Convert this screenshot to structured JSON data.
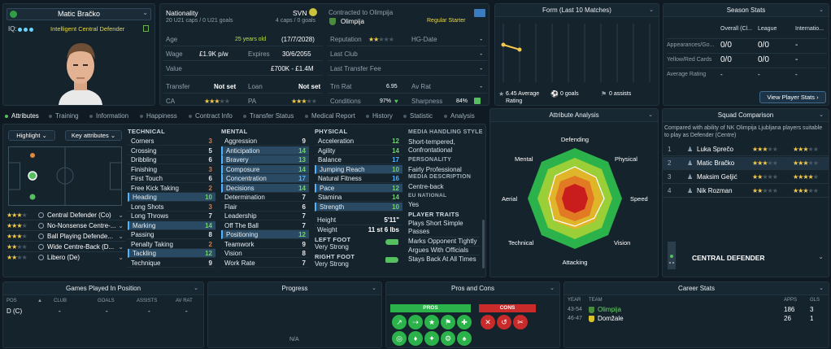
{
  "player": {
    "name": "Matic Bračko",
    "role_label": "Intelligent Central Defender",
    "iq_label": "IQ:"
  },
  "info": {
    "nationality_label": "Nationality",
    "nationality_value": "SVN",
    "caps": "20 U21 caps / 0 U21 goals",
    "caps_right": "4 caps / 0 goals",
    "contracted_label": "Contracted to Olimpija",
    "club": "Olimpija",
    "squad_status": "Regular Starter",
    "age_label": "Age",
    "age_value": "25 years old",
    "dob": "(17/7/2028)",
    "wage_label": "Wage",
    "wage_value": "£1.9K p/w",
    "expires_label": "Expires",
    "expires_value": "30/6/2055",
    "value_label": "Value",
    "value_value": "£700K - £1.4M",
    "transfer_label": "Transfer",
    "transfer_value": "Not set",
    "loan_label": "Loan",
    "loan_value": "Not set",
    "ca_label": "CA",
    "pa_label": "PA",
    "reputation_label": "Reputation",
    "hg_label": "HG-Date",
    "hg_value": "-",
    "lastclub_label": "Last Club",
    "lastclub_value": "-",
    "lasttransfer_label": "Last Transfer Fee",
    "lasttransfer_value": "-",
    "trnrat_label": "Trn Rat",
    "trnrat_value": "6.95",
    "avrat_label": "Av Rat",
    "avrat_value": "-",
    "conditions_label": "Conditions",
    "conditions_value": "97%",
    "sharpness_label": "Sharpness",
    "sharpness_value": "84%"
  },
  "form": {
    "title": "Form (Last 10 Matches)",
    "avg": "6.45 Average Rating",
    "goals": "0 goals",
    "assists": "0 assists"
  },
  "season": {
    "title": "Season Stats",
    "cols": [
      "Overall (Cl...",
      "League",
      "Internatio..."
    ],
    "rows": [
      {
        "label": "Appearances/Go...",
        "v": [
          "0/0",
          "0/0",
          "-"
        ]
      },
      {
        "label": "Yellow/Red Cards",
        "v": [
          "0/0",
          "0/0",
          "-"
        ]
      },
      {
        "label": "Average Rating",
        "v": [
          "-",
          "-",
          "-"
        ]
      }
    ],
    "button": "View Player Stats"
  },
  "tabs": [
    "Attributes",
    "Training",
    "Information",
    "Happiness",
    "Contract Info",
    "Transfer Status",
    "Medical Report",
    "History",
    "Statistic",
    "Analysis"
  ],
  "left": {
    "highlight": "Highlight",
    "keyattr": "Key attributes",
    "roles": [
      {
        "name": "Central Defender (Co)",
        "stars": 3
      },
      {
        "name": "No-Nonsense Centre-...",
        "stars": 3
      },
      {
        "name": "Ball Playing Defende...",
        "stars": 3
      },
      {
        "name": "Wide Centre-Back (D...",
        "stars": 2
      },
      {
        "name": "Libero (De)",
        "stars": 2
      }
    ]
  },
  "technical": {
    "title": "TECHNICAL",
    "items": [
      {
        "n": "Corners",
        "v": "3"
      },
      {
        "n": "Crossing",
        "v": "5"
      },
      {
        "n": "Dribbling",
        "v": "6"
      },
      {
        "n": "Finishing",
        "v": "3"
      },
      {
        "n": "First Touch",
        "v": "6"
      },
      {
        "n": "Free Kick Taking",
        "v": "2"
      },
      {
        "n": "Heading",
        "v": "10"
      },
      {
        "n": "Long Shots",
        "v": "3"
      },
      {
        "n": "Long Throws",
        "v": "7"
      },
      {
        "n": "Marking",
        "v": "14"
      },
      {
        "n": "Passing",
        "v": "8"
      },
      {
        "n": "Penalty Taking",
        "v": "2"
      },
      {
        "n": "Tackling",
        "v": "12"
      },
      {
        "n": "Technique",
        "v": "9"
      }
    ]
  },
  "mental": {
    "title": "MENTAL",
    "items": [
      {
        "n": "Aggression",
        "v": "9"
      },
      {
        "n": "Anticipation",
        "v": "14"
      },
      {
        "n": "Bravery",
        "v": "13"
      },
      {
        "n": "Composure",
        "v": "14"
      },
      {
        "n": "Concentration",
        "v": "17"
      },
      {
        "n": "Decisions",
        "v": "14"
      },
      {
        "n": "Determination",
        "v": "7"
      },
      {
        "n": "Flair",
        "v": "6"
      },
      {
        "n": "Leadership",
        "v": "7"
      },
      {
        "n": "Off The Ball",
        "v": "7"
      },
      {
        "n": "Positioning",
        "v": "12"
      },
      {
        "n": "Teamwork",
        "v": "9"
      },
      {
        "n": "Vision",
        "v": "8"
      },
      {
        "n": "Work Rate",
        "v": "7"
      }
    ]
  },
  "physical": {
    "title": "PHYSICAL",
    "items": [
      {
        "n": "Acceleration",
        "v": "12"
      },
      {
        "n": "Agility",
        "v": "14"
      },
      {
        "n": "Balance",
        "v": "17"
      },
      {
        "n": "Jumping Reach",
        "v": "10"
      },
      {
        "n": "Natural Fitness",
        "v": "16"
      },
      {
        "n": "Pace",
        "v": "12"
      },
      {
        "n": "Stamina",
        "v": "14"
      },
      {
        "n": "Strength",
        "v": "10"
      }
    ],
    "height_label": "Height",
    "height_value": "5'11\"",
    "weight_label": "Weight",
    "weight_value": "11 st 6 lbs",
    "leftfoot_label": "LEFT FOOT",
    "leftfoot_value": "Very Strong",
    "rightfoot_label": "RIGHT FOOT",
    "rightfoot_value": "Very Strong"
  },
  "media": {
    "style_label": "MEDIA HANDLING STYLE",
    "style_value": "Short-tempered, Confrontational",
    "personality_label": "PERSONALITY",
    "personality_value": "Fairly Professional",
    "desc_label": "MEDIA DESCRIPTION",
    "desc_value": "Centre-back",
    "eu_label": "EU NATIONAL",
    "eu_value": "Yes",
    "traits_label": "PLAYER TRAITS",
    "traits": [
      "Plays Short Simple Passes",
      "Marks Opponent Tightly",
      "Argues With Officials",
      "Stays Back At All Times"
    ]
  },
  "analysis": {
    "title": "Attribute Analysis",
    "labels": [
      "Defending",
      "Physical",
      "Speed",
      "Vision",
      "Attacking",
      "Technical",
      "Aerial",
      "Mental"
    ]
  },
  "squad": {
    "title": "Squad Comparison",
    "desc": "Compared with ability of NK Olimpija Ljubljana players suitable to play as Defender (Centre)",
    "players": [
      {
        "rank": "1",
        "name": "Luka Sprečo",
        "ca": 3,
        "pa": 3
      },
      {
        "rank": "2",
        "name": "Matic Bračko",
        "ca": 3,
        "pa": 3
      },
      {
        "rank": "3",
        "name": "Maksim Geljić",
        "ca": 2,
        "pa": 4
      },
      {
        "rank": "4",
        "name": "Nik Rozman",
        "ca": 2,
        "pa": 3
      }
    ],
    "position": "CENTRAL DEFENDER"
  },
  "games": {
    "title": "Games Played In Position",
    "cols": [
      "POS",
      "CLUB",
      "GOALS",
      "ASSISTS",
      "AV RAT"
    ],
    "row": [
      "D (C)",
      "-",
      "-",
      "-",
      "-"
    ]
  },
  "progress": {
    "title": "Progress",
    "na": "N/A"
  },
  "proscons": {
    "title": "Pros and Cons",
    "pros": "PROS",
    "cons": "CONS"
  },
  "career": {
    "title": "Career Stats",
    "cols": [
      "YEAR",
      "TEAM",
      "APPS",
      "GLS"
    ],
    "rows": [
      {
        "year": "43-54",
        "team": "Olimpija",
        "apps": "186",
        "gls": "3"
      },
      {
        "year": "46-47",
        "team": "Domžale",
        "apps": "26",
        "gls": "1"
      }
    ]
  }
}
